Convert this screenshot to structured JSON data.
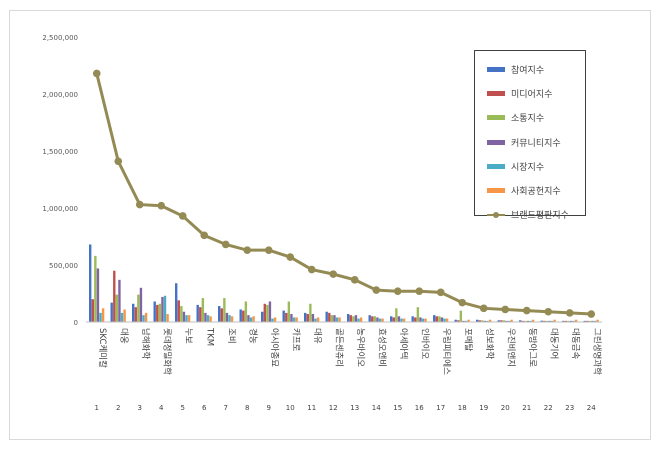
{
  "chart_data": {
    "type": "bar",
    "title": "",
    "xlabel": "",
    "ylabel": "",
    "ylim": [
      0,
      2500000
    ],
    "y_ticks": [
      "0",
      "500,000",
      "1,000,000",
      "1,500,000",
      "2,000,000",
      "2,500,000"
    ],
    "grid": false,
    "legend_position": "top-right",
    "categories": [
      "SKC케미칼",
      "대웅",
      "남해화학",
      "롯데정밀화학",
      "누보",
      "TKM",
      "조비",
      "경농",
      "아시아종묘",
      "카프로",
      "대유",
      "골든센츄리",
      "농우바이오",
      "효성오앤비",
      "아세아텍",
      "인바이오",
      "우림피티에스",
      "포메탈",
      "성보화학",
      "우진비앤지",
      "동방아그로",
      "대동기어",
      "대동금속",
      "그린생명과학"
    ],
    "ranks": [
      "1",
      "2",
      "3",
      "4",
      "5",
      "6",
      "7",
      "8",
      "9",
      "10",
      "11",
      "12",
      "13",
      "14",
      "15",
      "16",
      "17",
      "18",
      "19",
      "20",
      "21",
      "22",
      "23",
      "24"
    ],
    "series": [
      {
        "name": "참여지수",
        "color": "#4472c4",
        "type": "bar",
        "values": [
          680000,
          170000,
          160000,
          180000,
          340000,
          150000,
          140000,
          110000,
          90000,
          100000,
          80000,
          90000,
          70000,
          60000,
          50000,
          50000,
          60000,
          20000,
          20000,
          15000,
          15000,
          12000,
          10000,
          10000
        ]
      },
      {
        "name": "미디어지수",
        "color": "#c0504d",
        "type": "bar",
        "values": [
          200000,
          450000,
          130000,
          150000,
          190000,
          130000,
          120000,
          100000,
          160000,
          80000,
          70000,
          80000,
          60000,
          50000,
          40000,
          40000,
          50000,
          15000,
          15000,
          15000,
          10000,
          10000,
          10000,
          10000
        ]
      },
      {
        "name": "소통지수",
        "color": "#9bbb59",
        "type": "bar",
        "values": [
          580000,
          240000,
          240000,
          160000,
          140000,
          210000,
          210000,
          180000,
          150000,
          180000,
          160000,
          60000,
          50000,
          50000,
          120000,
          130000,
          50000,
          100000,
          15000,
          15000,
          10000,
          10000,
          10000,
          10000
        ]
      },
      {
        "name": "커뮤니티지수",
        "color": "#8064a2",
        "type": "bar",
        "values": [
          470000,
          370000,
          300000,
          220000,
          90000,
          80000,
          80000,
          60000,
          180000,
          70000,
          70000,
          60000,
          60000,
          40000,
          50000,
          40000,
          40000,
          10000,
          10000,
          10000,
          10000,
          10000,
          10000,
          10000
        ]
      },
      {
        "name": "시장지수",
        "color": "#4bacc6",
        "type": "bar",
        "values": [
          80000,
          80000,
          60000,
          230000,
          60000,
          60000,
          60000,
          40000,
          30000,
          40000,
          30000,
          40000,
          30000,
          30000,
          30000,
          30000,
          30000,
          10000,
          10000,
          10000,
          10000,
          10000,
          10000,
          10000
        ]
      },
      {
        "name": "사회공헌지수",
        "color": "#f79646",
        "type": "bar",
        "values": [
          120000,
          110000,
          80000,
          70000,
          60000,
          50000,
          50000,
          50000,
          40000,
          40000,
          40000,
          40000,
          40000,
          30000,
          30000,
          30000,
          30000,
          20000,
          20000,
          20000,
          20000,
          20000,
          20000,
          20000
        ]
      },
      {
        "name": "브랜드평판지수",
        "color": "#948a54",
        "type": "line",
        "values": [
          2180000,
          1410000,
          1030000,
          1020000,
          930000,
          760000,
          680000,
          630000,
          630000,
          570000,
          460000,
          420000,
          370000,
          280000,
          270000,
          270000,
          260000,
          170000,
          120000,
          110000,
          100000,
          90000,
          80000,
          70000
        ]
      }
    ]
  }
}
